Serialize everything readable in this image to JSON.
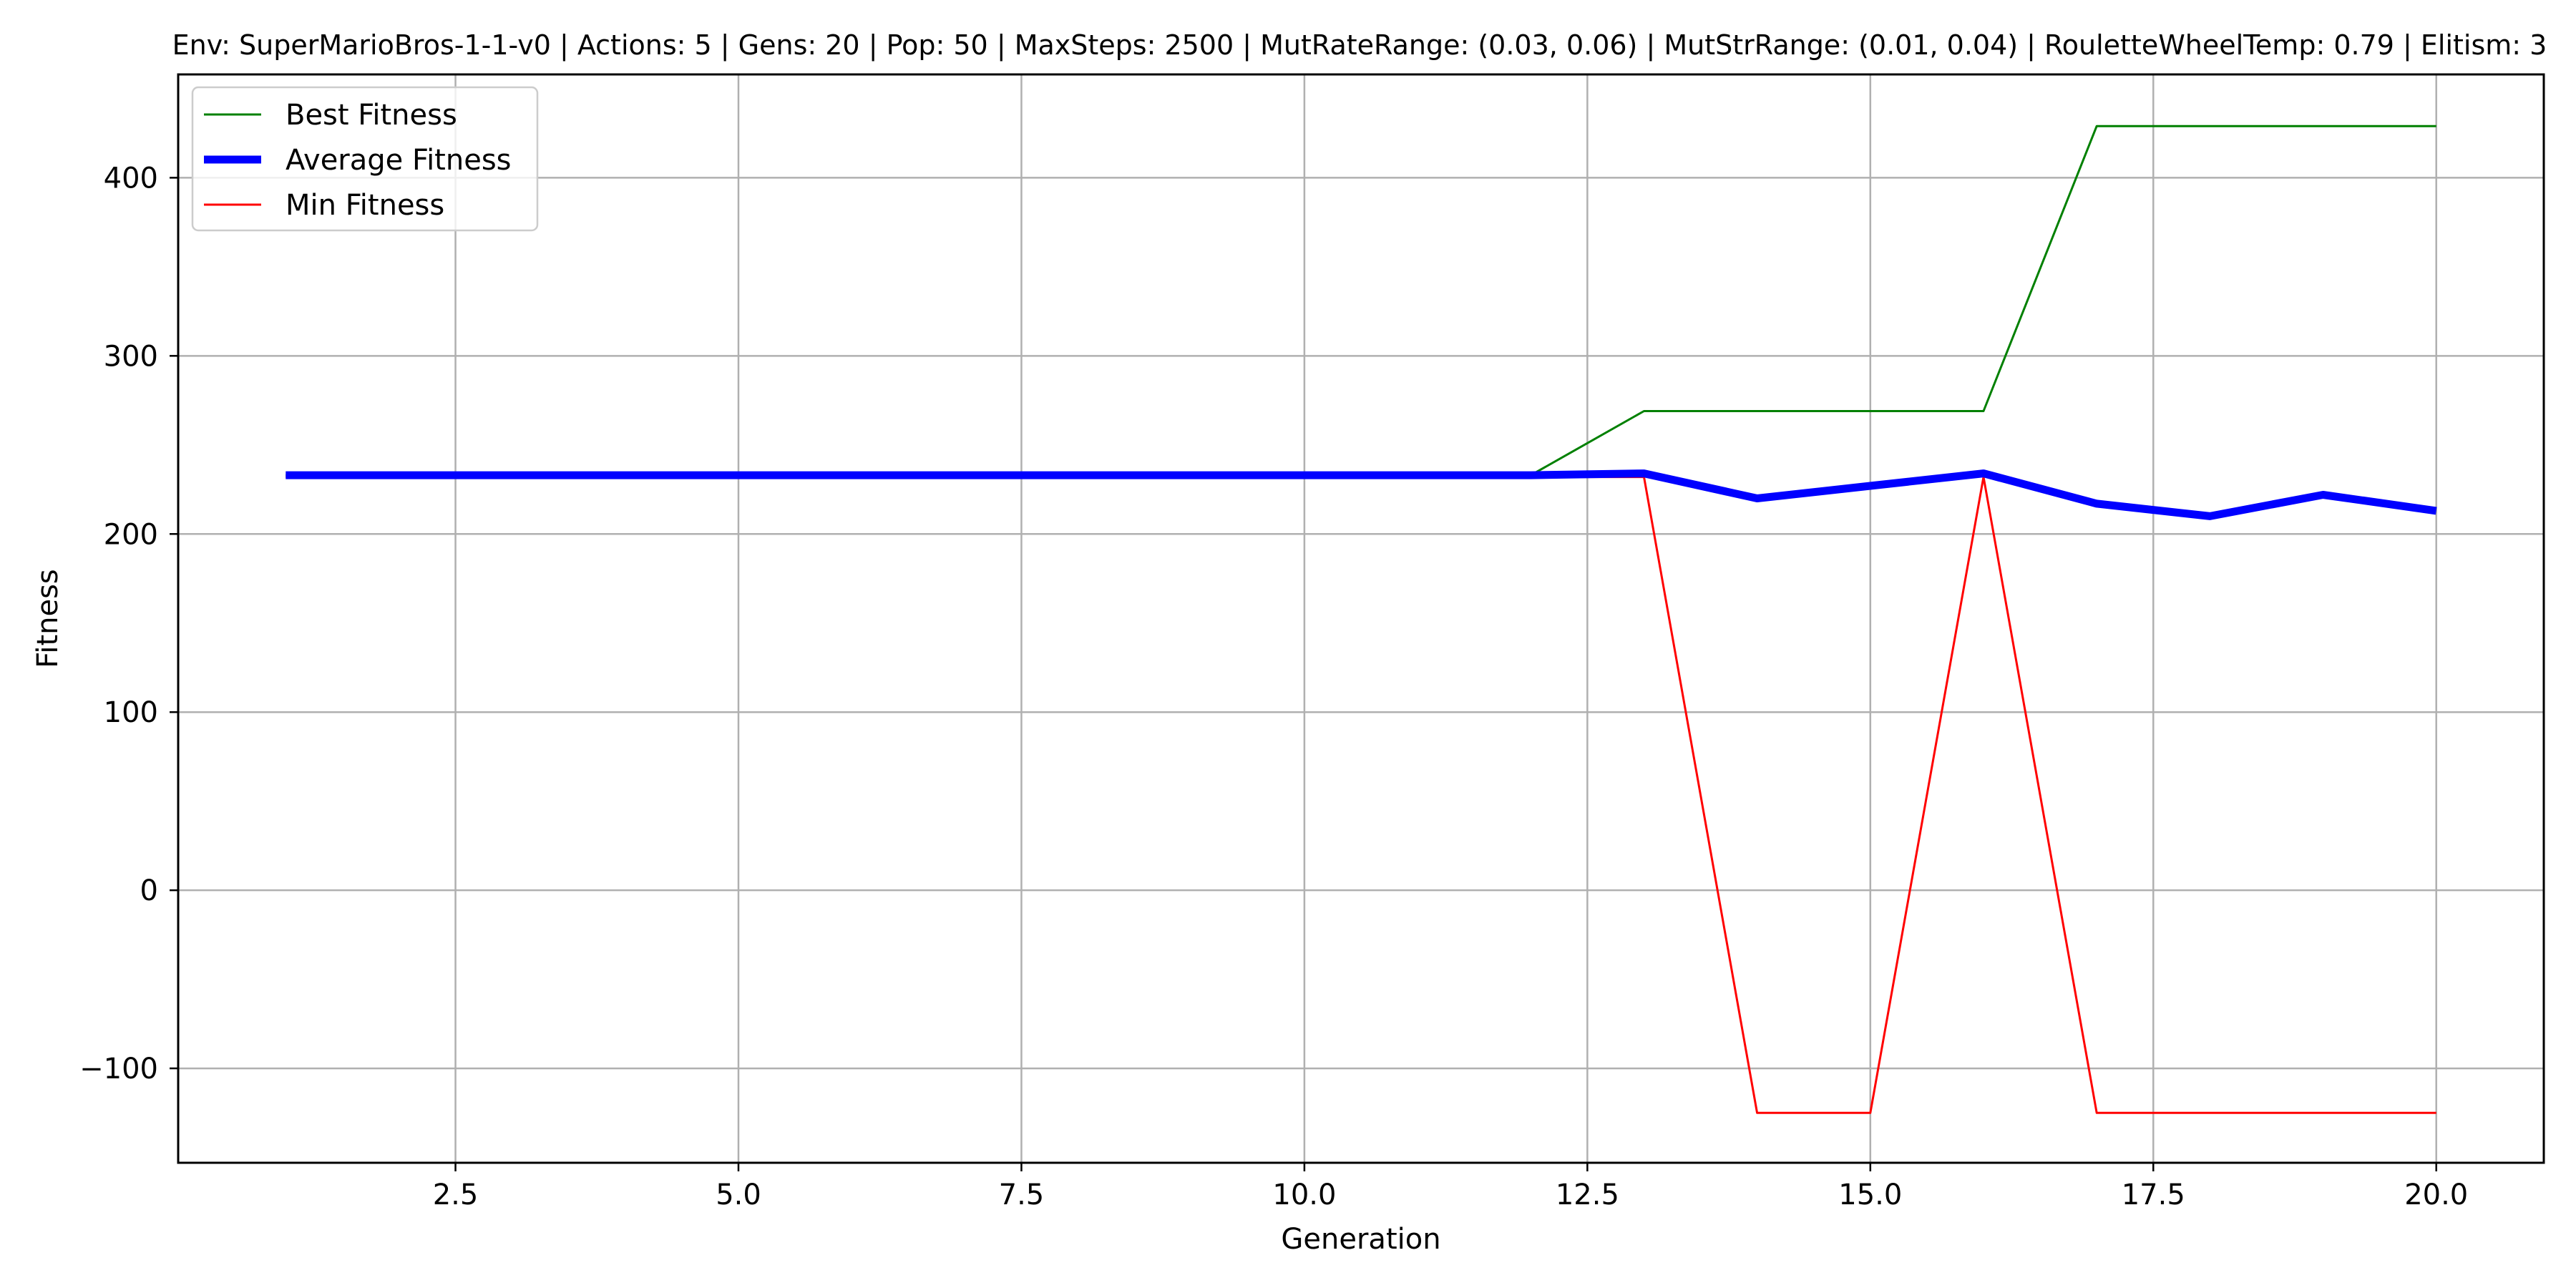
{
  "chart_data": {
    "type": "line",
    "title": "Env: SuperMarioBros-1-1-v0 | Actions: 5 | Gens: 20 | Pop: 50 | MaxSteps: 2500 | MutRateRange: (0.03, 0.06) | MutStrRange: (0.01, 0.04) | RouletteWheelTemp: 0.79 | Elitism: 3",
    "xlabel": "Generation",
    "ylabel": "Fitness",
    "xlim": [
      0.05,
      20.95
    ],
    "ylim": [
      -153,
      458
    ],
    "xticks": [
      2.5,
      5.0,
      7.5,
      10.0,
      12.5,
      15.0,
      17.5,
      20.0
    ],
    "xtick_labels": [
      "2.5",
      "5.0",
      "7.5",
      "10.0",
      "12.5",
      "15.0",
      "17.5",
      "20.0"
    ],
    "yticks": [
      -100,
      0,
      100,
      200,
      300,
      400
    ],
    "ytick_labels": [
      "−100",
      "0",
      "100",
      "200",
      "300",
      "400"
    ],
    "grid": true,
    "legend_position": "top-left",
    "x": [
      1,
      2,
      3,
      4,
      5,
      6,
      7,
      8,
      9,
      10,
      11,
      12,
      13,
      14,
      15,
      16,
      17,
      18,
      19,
      20
    ],
    "series": [
      {
        "name": "Best Fitness",
        "color": "#008000",
        "values": [
          233,
          233,
          233,
          233,
          233,
          233,
          233,
          233,
          233,
          233,
          233,
          233,
          269,
          269,
          269,
          269,
          429,
          429,
          429,
          429
        ]
      },
      {
        "name": "Average Fitness",
        "color": "#0000ff",
        "values": [
          233,
          233,
          233,
          233,
          233,
          233,
          233,
          233,
          233,
          233,
          233,
          233,
          234,
          220,
          227,
          234,
          217,
          210,
          222,
          213
        ]
      },
      {
        "name": "Min Fitness",
        "color": "#ff0000",
        "values": [
          232,
          232,
          232,
          232,
          232,
          232,
          232,
          232,
          232,
          232,
          232,
          232,
          232,
          -125,
          -125,
          232,
          -125,
          -125,
          -125,
          -125
        ]
      }
    ]
  }
}
